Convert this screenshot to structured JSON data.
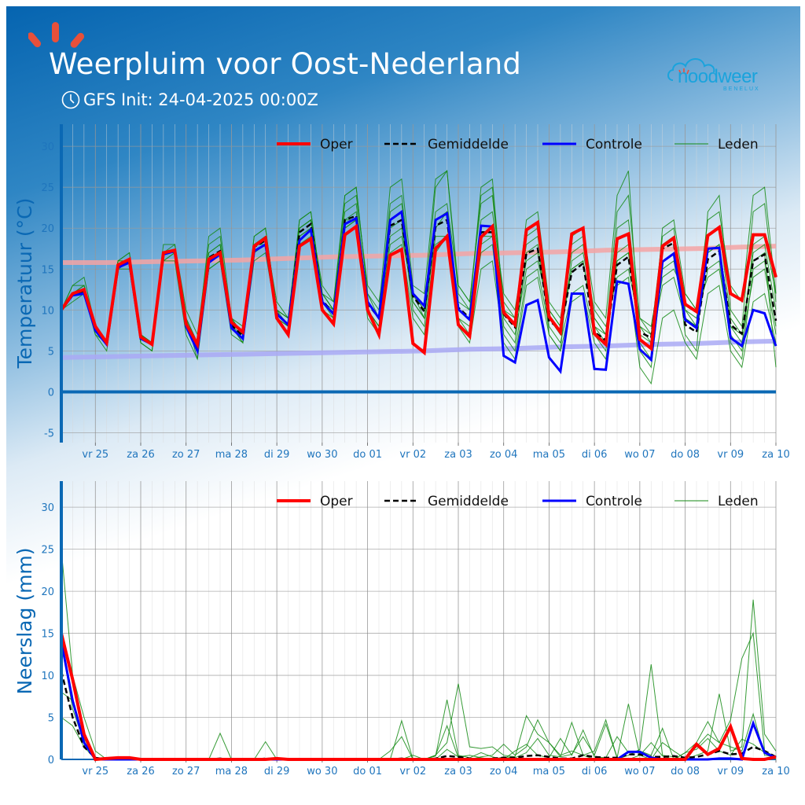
{
  "header": {
    "title": "Weerpluim voor Oost-Nederland",
    "subtitle": "GFS Init: 24-04-2025 00:00Z",
    "logo_text": "noodweer",
    "logo_subtext": "BENELUX",
    "icons": {
      "clock": "clock-icon",
      "rays": "sun-rays-icon",
      "logo": "cloud-logo-icon"
    }
  },
  "colors": {
    "oper": "#ff0000",
    "mean": "#000000",
    "control": "#0000ff",
    "members": "#138a13",
    "normal_max": "#f5a3a3",
    "normal_min": "#a9a9f5",
    "axis": "#0a68b4"
  },
  "chart_data": [
    {
      "type": "line",
      "ylabel": "Temperatuur (°C)",
      "ylim": [
        -6.2,
        32.7
      ],
      "yticks": [
        -5,
        0,
        5,
        10,
        15,
        20,
        25,
        30
      ],
      "grid": true,
      "legend_placement": "top-right",
      "legend": [
        "Oper",
        "Gemiddelde",
        "Controle",
        "Leden"
      ],
      "x_step": "6h",
      "x_start": "2025-04-24 06Z",
      "x_end": "2025-05-10 00Z",
      "xtick_labels": [
        "vr 25",
        "za 26",
        "zo 27",
        "ma 28",
        "di 29",
        "wo 30",
        "do 01",
        "vr 02",
        "za 03",
        "zo 04",
        "ma 05",
        "di 06",
        "wo 07",
        "do 08",
        "vr 09",
        "za 10"
      ],
      "oper": [
        10,
        12,
        12.5,
        8,
        6,
        15.5,
        16.2,
        6.7,
        5.8,
        17,
        17.3,
        8.3,
        5.8,
        16.2,
        17,
        8.5,
        7.3,
        17.8,
        18.8,
        9,
        7,
        17.8,
        18.7,
        10,
        8.3,
        19.2,
        20.2,
        10,
        7,
        16.7,
        17.4,
        5.9,
        4.8,
        17.5,
        19,
        8.2,
        6.8,
        18.9,
        20.2,
        9.7,
        8.2,
        19.8,
        20.7,
        9.2,
        7.3,
        19.3,
        20,
        7.1,
        5.8,
        18.7,
        19.3,
        6.4,
        5.3,
        17.8,
        18.8,
        10.7,
        9.8,
        19.1,
        20.1,
        12,
        11.2,
        19.2,
        19.2,
        14
      ],
      "mean": [
        10,
        12,
        12.3,
        7.8,
        5.9,
        15.4,
        16,
        6.6,
        5.8,
        16.8,
        17.2,
        8.2,
        5.6,
        16.4,
        17.2,
        8.2,
        6.8,
        17.7,
        18.5,
        9.6,
        8.2,
        19.5,
        20.5,
        11.2,
        9.5,
        21,
        21.5,
        10.8,
        9,
        20.3,
        21,
        11.7,
        9.8,
        20.3,
        21,
        10.3,
        9,
        19.5,
        19.5,
        9.5,
        7.9,
        16.9,
        17.5,
        8.7,
        7.6,
        14.6,
        15.7,
        7.3,
        6.3,
        15.5,
        16.5,
        7.3,
        6.6,
        17.5,
        18.2,
        8.2,
        7.3,
        16.2,
        17.2,
        8.2,
        7.1,
        16,
        16.8,
        8.7
      ],
      "control": [
        10,
        11.8,
        12,
        7.5,
        5.8,
        15.2,
        15.8,
        6.5,
        5.8,
        16.8,
        17.2,
        8,
        5,
        15.8,
        16.8,
        7.8,
        6.5,
        17.2,
        18,
        9.5,
        8.2,
        18.5,
        19.8,
        11,
        9.5,
        20.5,
        21.2,
        11,
        9,
        21,
        22,
        12,
        10.5,
        21,
        21.8,
        10.1,
        8.8,
        20.3,
        20.2,
        4.4,
        3.6,
        10.6,
        11.2,
        4.2,
        2.5,
        12,
        12,
        2.8,
        2.7,
        13.5,
        13.2,
        5.2,
        3.9,
        15.9,
        16.9,
        8.8,
        7.8,
        17.5,
        17.6,
        6.6,
        5.6,
        10,
        9.6,
        5.6
      ],
      "normal_max_daily": [
        15.8,
        15.8,
        15.9,
        16,
        16.1,
        16.3,
        16.5,
        16.6,
        16.7,
        16.9,
        17,
        17.1,
        17.3,
        17.4,
        17.5,
        17.7,
        17.8
      ],
      "normal_min_daily": [
        4.2,
        4.3,
        4.4,
        4.5,
        4.6,
        4.7,
        4.8,
        4.9,
        5.0,
        5.2,
        5.3,
        5.5,
        5.6,
        5.8,
        5.9,
        6.1,
        6.2
      ],
      "members": [
        [
          10,
          13,
          13,
          8,
          6,
          16,
          17,
          7,
          6,
          18,
          18,
          9,
          6,
          17,
          18,
          9,
          7,
          19,
          20,
          10,
          8,
          21,
          22,
          12,
          10,
          24,
          25,
          12,
          9,
          22,
          23,
          12,
          10,
          25,
          27,
          13,
          11,
          24,
          25,
          10,
          9,
          21,
          22,
          11,
          9,
          18,
          19,
          9,
          7,
          20,
          21,
          8,
          6,
          14,
          15,
          12,
          10,
          21,
          22,
          13,
          11,
          24,
          25,
          12
        ],
        [
          10,
          12,
          12,
          7,
          5,
          15,
          16,
          6,
          5,
          16,
          16,
          7,
          4,
          15,
          16,
          7,
          6,
          16,
          17,
          9,
          7,
          18,
          19,
          10,
          9,
          20,
          21,
          9,
          7,
          17,
          18,
          9,
          7,
          17,
          19,
          8,
          6,
          15,
          16,
          6,
          4,
          13,
          14,
          7,
          5,
          11,
          12,
          6,
          4,
          13,
          14,
          3,
          1,
          9,
          10,
          6,
          4,
          12,
          13,
          5,
          3,
          11,
          12,
          6
        ],
        [
          10,
          12,
          13,
          8,
          6,
          16,
          16,
          7,
          6,
          17,
          17,
          9,
          6,
          19,
          20,
          9,
          7,
          18,
          19,
          11,
          9,
          21,
          22,
          12,
          10,
          22,
          23,
          11,
          9,
          23,
          24,
          12,
          10,
          22,
          23,
          13,
          11,
          23,
          24,
          11,
          9,
          18,
          19,
          10,
          8,
          17,
          18,
          9,
          7,
          22,
          24,
          9,
          8,
          16,
          17,
          10,
          8,
          19,
          20,
          9,
          7,
          17,
          18,
          10
        ],
        [
          10,
          11,
          12,
          8,
          6,
          15,
          16,
          6,
          5,
          17,
          18,
          10,
          7,
          18,
          19,
          8,
          6,
          18,
          19,
          10,
          9,
          20,
          21,
          12,
          11,
          23,
          24,
          13,
          11,
          20,
          21,
          10,
          8,
          18,
          19,
          9,
          7,
          21,
          22,
          12,
          10,
          19,
          20,
          7,
          5,
          19,
          20,
          11,
          9,
          24,
          27,
          6,
          4,
          20,
          21,
          12,
          10,
          14,
          15,
          7,
          5,
          18,
          19,
          12
        ],
        [
          10,
          12,
          12,
          7,
          6,
          15,
          15,
          7,
          6,
          16,
          17,
          8,
          5,
          15,
          16,
          8,
          7,
          17,
          18,
          9,
          8,
          19,
          20,
          12,
          10,
          21,
          21,
          10,
          8,
          19,
          20,
          11,
          9,
          19,
          19,
          9,
          8,
          17,
          18,
          7,
          5,
          14,
          15,
          8,
          6,
          12,
          13,
          7,
          5,
          17,
          18,
          5,
          3,
          15,
          16,
          9,
          8,
          17,
          18,
          8,
          6,
          14,
          15,
          7
        ],
        [
          10,
          13,
          14,
          8,
          6,
          16,
          17,
          7,
          6,
          17,
          17,
          8,
          6,
          16,
          17,
          9,
          7,
          19,
          20,
          10,
          9,
          20,
          21,
          13,
          11,
          24,
          25,
          12,
          10,
          25,
          26,
          13,
          12,
          26,
          27,
          12,
          10,
          25,
          26,
          10,
          8,
          16,
          17,
          9,
          7,
          16,
          17,
          10,
          8,
          14,
          15,
          8,
          7,
          18,
          19,
          7,
          5,
          22,
          24,
          10,
          8,
          22,
          23,
          11
        ],
        [
          10,
          12,
          12,
          8,
          6,
          15,
          16,
          7,
          6,
          16,
          17,
          9,
          4,
          16,
          17,
          9,
          8,
          18,
          18,
          10,
          9,
          19,
          20,
          11,
          10,
          20,
          21,
          10,
          8,
          18,
          19,
          12,
          9,
          20,
          22,
          10,
          9,
          19,
          19,
          8,
          6,
          17,
          18,
          9,
          7,
          15,
          16,
          8,
          7,
          16,
          17,
          7,
          6,
          13,
          14,
          9,
          8,
          15,
          16,
          6,
          4,
          15,
          16,
          8
        ],
        [
          10,
          12,
          13,
          8,
          6,
          16,
          16,
          6,
          5,
          17,
          17,
          8,
          6,
          17,
          18,
          8,
          6,
          17,
          18,
          9,
          8,
          20,
          21,
          11,
          9,
          21,
          22,
          10,
          8,
          21,
          22,
          11,
          9,
          21,
          22,
          11,
          10,
          18,
          19,
          9,
          7,
          15,
          16,
          10,
          8,
          15,
          16,
          8,
          6,
          16,
          17,
          9,
          7,
          19,
          20,
          10,
          9,
          17,
          18,
          8,
          7,
          16,
          17,
          3
        ]
      ]
    },
    {
      "type": "line",
      "ylabel": "Neerslag (mm)",
      "ylim": [
        0,
        33.1
      ],
      "yticks": [
        0,
        5,
        10,
        15,
        20,
        25,
        30
      ],
      "grid": true,
      "legend_placement": "top-right",
      "legend": [
        "Oper",
        "Gemiddelde",
        "Controle",
        "Leden"
      ],
      "x_step": "6h",
      "x_start": "2025-04-24 06Z",
      "x_end": "2025-05-10 00Z",
      "xtick_labels": [
        "vr 25",
        "za 26",
        "zo 27",
        "ma 28",
        "di 29",
        "wo 30",
        "do 01",
        "vr 02",
        "za 03",
        "zo 04",
        "ma 05",
        "di 06",
        "wo 07",
        "do 08",
        "vr 09",
        "za 10"
      ],
      "oper": [
        15,
        9.5,
        3,
        0,
        0.1,
        0.2,
        0.2,
        0,
        0,
        0,
        0,
        0,
        0,
        0,
        0,
        0,
        0,
        0,
        0,
        0.1,
        0,
        0,
        0,
        0,
        0,
        0,
        0,
        0,
        0,
        0,
        0,
        0,
        0,
        0,
        0,
        0,
        0,
        0,
        0,
        0,
        0,
        0,
        0,
        0,
        0,
        0,
        0,
        0,
        0,
        0,
        0,
        0,
        0,
        0,
        0,
        0,
        1.8,
        0.6,
        1.3,
        3.9,
        0.1,
        0,
        0,
        0.3
      ],
      "mean": [
        10.5,
        5,
        1.5,
        0.2,
        0,
        0.1,
        0.1,
        0,
        0,
        0,
        0,
        0,
        0,
        0,
        0.1,
        0,
        0,
        0,
        0.1,
        0,
        0,
        0,
        0,
        0,
        0,
        0,
        0,
        0,
        0,
        0,
        0.1,
        0,
        0,
        0.1,
        0.4,
        0.3,
        0.1,
        0,
        0.1,
        0.2,
        0.2,
        0.4,
        0.5,
        0.3,
        0.1,
        0.1,
        0.5,
        0.3,
        0.2,
        0.2,
        0.6,
        0.6,
        0.3,
        0.3,
        0.4,
        0.2,
        0.3,
        0.6,
        1,
        0.6,
        0.7,
        1.5,
        1,
        0.3
      ],
      "control": [
        14,
        7,
        2,
        0,
        0,
        0,
        0,
        0,
        0,
        0,
        0,
        0,
        0,
        0,
        0,
        0,
        0,
        0,
        0,
        0,
        0,
        0,
        0,
        0,
        0,
        0,
        0,
        0,
        0,
        0,
        0,
        0,
        0,
        0,
        0,
        0,
        0,
        0,
        0,
        0,
        0,
        0,
        0,
        0,
        0,
        0,
        0,
        0,
        0,
        0,
        0.9,
        0.9,
        0.2,
        0,
        0,
        0,
        0,
        0,
        0.1,
        0.1,
        0,
        4.3,
        0.8,
        0.2
      ],
      "members": [
        [
          25,
          10,
          5,
          1,
          0,
          0,
          0,
          0,
          0,
          0,
          0,
          0,
          0,
          0,
          3.1,
          0,
          0,
          0,
          0,
          0,
          0,
          0,
          0,
          0,
          0,
          0,
          0,
          0,
          0,
          0,
          0,
          0.5,
          0,
          0.5,
          2,
          9,
          1.5,
          1.3,
          1.5,
          0.5,
          0.3,
          5.2,
          3,
          2,
          0.5,
          1,
          0.5,
          0,
          0,
          0,
          0.5,
          1.2,
          11.3,
          0.5,
          0.3,
          0,
          0.5,
          1,
          7.8,
          1,
          1.5,
          19,
          3,
          1
        ],
        [
          14,
          6,
          2,
          0.2,
          0,
          0,
          0.3,
          0,
          0,
          0,
          0,
          0,
          0,
          0,
          0,
          0,
          0,
          0,
          2.1,
          0,
          0,
          0,
          0,
          0,
          0,
          0,
          0,
          0,
          0,
          0,
          4.6,
          0,
          0,
          0.5,
          4,
          0.2,
          0,
          0.3,
          0.5,
          1.8,
          0.5,
          1.5,
          4.7,
          2,
          0.3,
          4.4,
          0.5,
          1,
          4.7,
          0.2,
          6.6,
          0.5,
          0,
          2,
          1,
          0.1,
          1.5,
          3,
          2,
          4.7,
          12,
          15,
          1,
          0.3
        ],
        [
          8,
          7,
          2.5,
          0,
          0,
          0,
          0,
          0,
          0,
          0,
          0,
          0,
          0,
          0,
          0,
          0,
          0,
          0,
          0,
          0,
          0,
          0,
          0,
          0,
          0,
          0,
          0,
          0,
          0,
          0,
          0,
          0,
          0,
          0.4,
          7.1,
          0.5,
          0.2,
          0.8,
          0.3,
          0,
          1,
          1.8,
          0.5,
          0.2,
          2.5,
          0.5,
          3.5,
          0.3,
          0.2,
          2.7,
          0.8,
          1,
          0.5,
          3.7,
          0,
          0.8,
          2,
          4.5,
          2,
          1.5,
          1,
          5.4,
          0.5,
          0.3
        ],
        [
          5,
          4,
          1.5,
          0,
          0,
          0,
          0,
          0,
          0,
          0,
          0,
          0,
          0,
          0,
          0,
          0,
          0,
          0,
          0,
          0,
          0,
          0,
          0,
          0,
          0,
          0,
          0,
          0,
          0,
          1,
          2.7,
          0,
          0,
          0,
          1.2,
          0.3,
          0.5,
          0.2,
          0,
          0.3,
          0.2,
          0.8,
          2.5,
          0.5,
          0.3,
          0.6,
          2.7,
          0.5,
          4.2,
          0.2,
          0,
          0.5,
          2,
          0.4,
          0,
          0.8,
          1.2,
          2.5,
          1,
          0.5,
          2.4,
          1.8,
          0.8,
          0
        ]
      ]
    }
  ]
}
